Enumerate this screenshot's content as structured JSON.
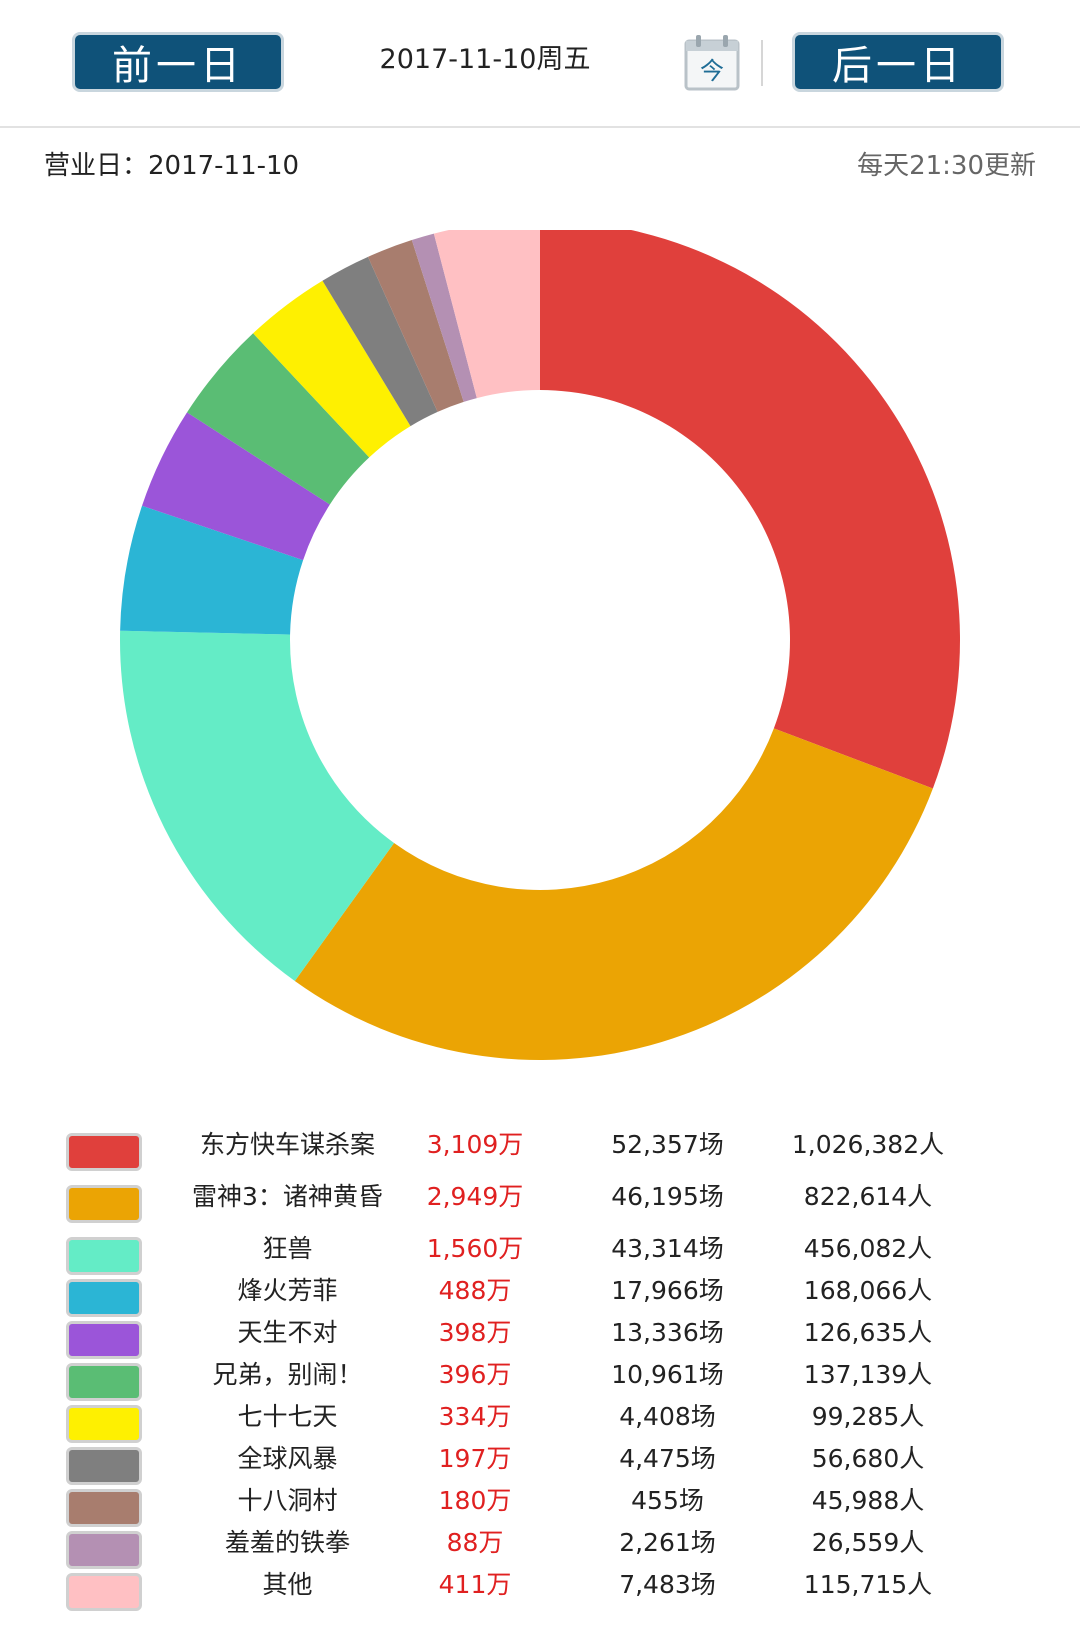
{
  "header": {
    "prev_label": "前一日",
    "next_label": "后一日",
    "date": "2017-11-10周五",
    "calendar_label": "今"
  },
  "info": {
    "business_day": "营业日：2017-11-10",
    "update_note": "每天21:30更新"
  },
  "colors": {
    "nav_button": "#0f5279",
    "box_office_text": "#e02020"
  },
  "chart_data": {
    "type": "pie",
    "donut": true,
    "categories": [
      "东方快车谋杀案",
      "雷神3：诸神黄昏",
      "狂兽",
      "烽火芳菲",
      "天生不对",
      "兄弟，别闹！",
      "七十七天",
      "全球风暴",
      "十八洞村",
      "羞羞的铁拳",
      "其他"
    ],
    "values": [
      3109,
      2949,
      1560,
      488,
      398,
      396,
      334,
      197,
      180,
      88,
      411
    ],
    "colors": [
      "#e0403c",
      "#eba404",
      "#64ecc6",
      "#2bb5d5",
      "#9b55d9",
      "#5abd74",
      "#fef001",
      "#7f7f7f",
      "#a87d6e",
      "#b490b3",
      "#ffc0c3"
    ]
  },
  "legend": [
    {
      "name": "东方快车谋杀案",
      "box": "3,109万",
      "shows": "52,357场",
      "people": "1,026,382人",
      "color": "#e0403c"
    },
    {
      "name": "雷神3：诸神黄昏",
      "box": "2,949万",
      "shows": "46,195场",
      "people": "822,614人",
      "color": "#eba404"
    },
    {
      "name": "狂兽",
      "box": "1,560万",
      "shows": "43,314场",
      "people": "456,082人",
      "color": "#64ecc6"
    },
    {
      "name": "烽火芳菲",
      "box": "488万",
      "shows": "17,966场",
      "people": "168,066人",
      "color": "#2bb5d5"
    },
    {
      "name": "天生不对",
      "box": "398万",
      "shows": "13,336场",
      "people": "126,635人",
      "color": "#9b55d9"
    },
    {
      "name": "兄弟，别闹！",
      "box": "396万",
      "shows": "10,961场",
      "people": "137,139人",
      "color": "#5abd74"
    },
    {
      "name": "七十七天",
      "box": "334万",
      "shows": "4,408场",
      "people": "99,285人",
      "color": "#fef001"
    },
    {
      "name": "全球风暴",
      "box": "197万",
      "shows": "4,475场",
      "people": "56,680人",
      "color": "#7f7f7f"
    },
    {
      "name": "十八洞村",
      "box": "180万",
      "shows": "455场",
      "people": "45,988人",
      "color": "#a87d6e"
    },
    {
      "name": "羞羞的铁拳",
      "box": "88万",
      "shows": "2,261场",
      "people": "26,559人",
      "color": "#b490b3"
    },
    {
      "name": "其他",
      "box": "411万",
      "shows": "7,483场",
      "people": "115,715人",
      "color": "#ffc0c3"
    }
  ]
}
